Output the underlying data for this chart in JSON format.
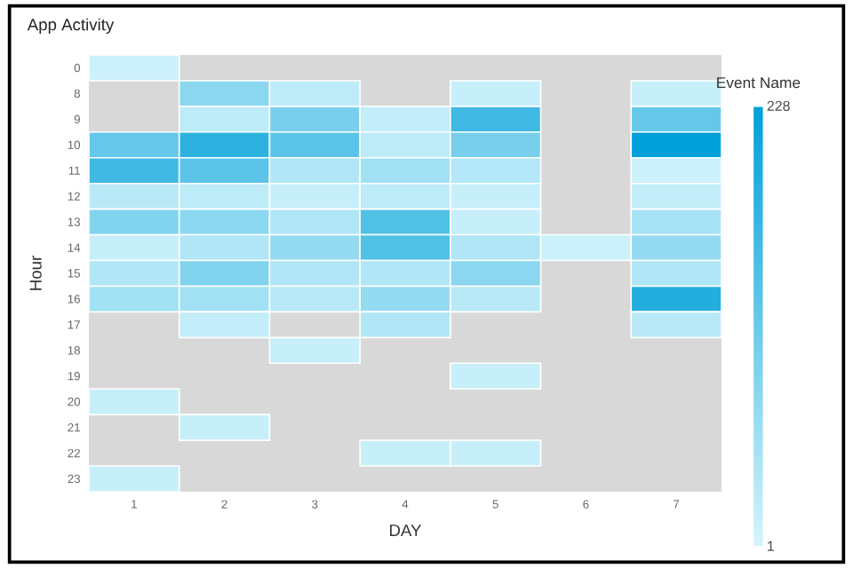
{
  "chart_data": {
    "type": "heatmap",
    "title": "App Activity",
    "xlabel": "DAY",
    "ylabel": "Hour",
    "clabel": "Event Name",
    "categories": [
      "1",
      "2",
      "3",
      "4",
      "5",
      "6",
      "7"
    ],
    "y_categories": [
      "0",
      "8",
      "9",
      "10",
      "11",
      "12",
      "13",
      "14",
      "15",
      "16",
      "17",
      "18",
      "19",
      "20",
      "21",
      "22",
      "23"
    ],
    "cells": [
      [
        10,
        null,
        null,
        null,
        null,
        null,
        null
      ],
      [
        null,
        80,
        25,
        null,
        15,
        null,
        15
      ],
      [
        null,
        25,
        100,
        20,
        160,
        null,
        120
      ],
      [
        120,
        180,
        130,
        25,
        100,
        null,
        228
      ],
      [
        160,
        130,
        40,
        55,
        35,
        null,
        10
      ],
      [
        30,
        25,
        15,
        25,
        15,
        null,
        20
      ],
      [
        90,
        80,
        40,
        140,
        15,
        null,
        50
      ],
      [
        15,
        40,
        70,
        140,
        40,
        10,
        70
      ],
      [
        40,
        90,
        40,
        40,
        80,
        null,
        40
      ],
      [
        55,
        55,
        30,
        70,
        30,
        null,
        190
      ],
      [
        null,
        20,
        null,
        40,
        null,
        null,
        30
      ],
      [
        null,
        null,
        15,
        null,
        null,
        null,
        null
      ],
      [
        null,
        null,
        null,
        null,
        15,
        null,
        null
      ],
      [
        15,
        null,
        null,
        null,
        null,
        null,
        null
      ],
      [
        null,
        15,
        null,
        null,
        null,
        null,
        null
      ],
      [
        null,
        null,
        null,
        15,
        15,
        null,
        null
      ],
      [
        15,
        null,
        null,
        null,
        null,
        null,
        null
      ]
    ],
    "clim": [
      1,
      228
    ],
    "cticks": [
      1,
      228
    ]
  }
}
